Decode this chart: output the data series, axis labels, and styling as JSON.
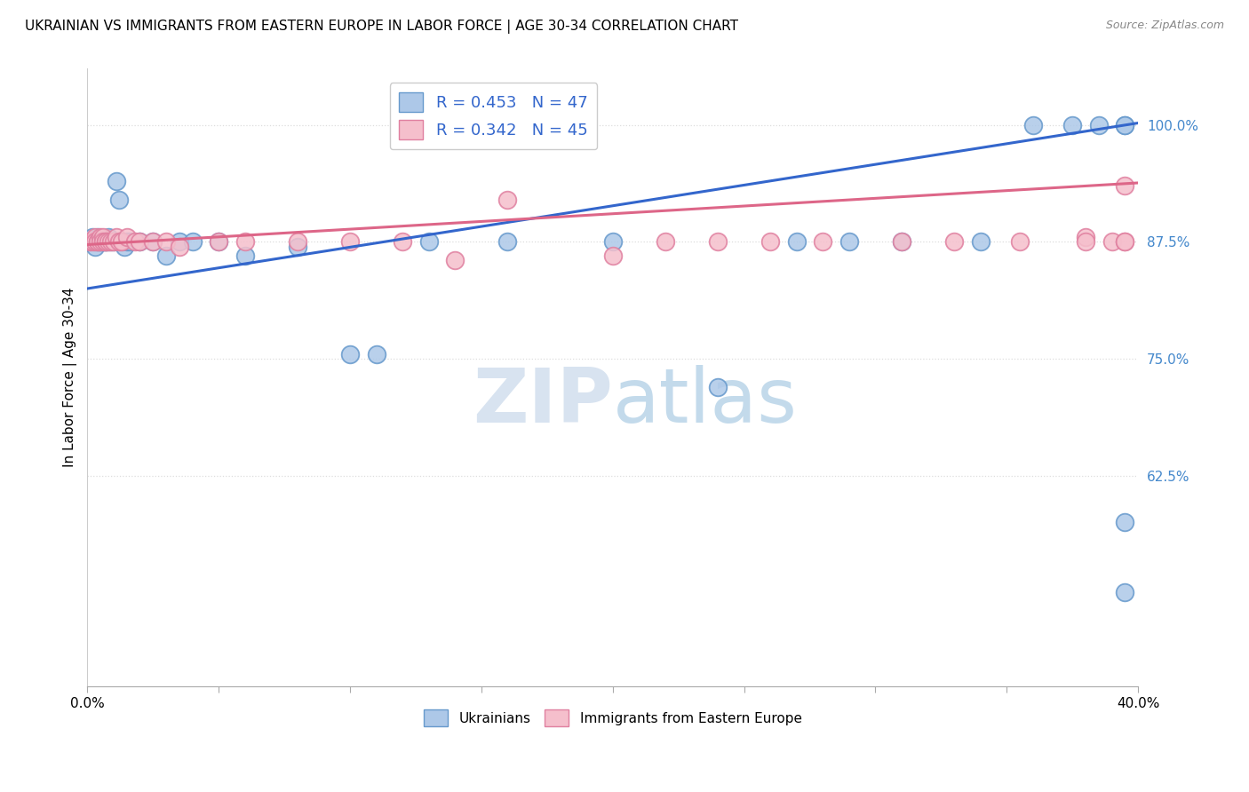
{
  "title": "UKRAINIAN VS IMMIGRANTS FROM EASTERN EUROPE IN LABOR FORCE | AGE 30-34 CORRELATION CHART",
  "source": "Source: ZipAtlas.com",
  "ylabel": "In Labor Force | Age 30-34",
  "xlim": [
    0.0,
    0.4
  ],
  "ylim": [
    0.4,
    1.06
  ],
  "blue_R": 0.453,
  "blue_N": 47,
  "pink_R": 0.342,
  "pink_N": 45,
  "blue_color": "#adc8e8",
  "blue_edge": "#6699cc",
  "pink_color": "#f5bfcc",
  "pink_edge": "#e080a0",
  "blue_line_color": "#3366cc",
  "pink_line_color": "#dd6688",
  "watermark_color": "#d0e0f5",
  "grid_color": "#dddddd",
  "ytick_color": "#4488cc",
  "y_ticks": [
    0.625,
    0.75,
    0.875,
    1.0
  ],
  "y_tick_labels": [
    "62.5%",
    "75.0%",
    "87.5%",
    "100.0%"
  ],
  "blue_x": [
    0.001,
    0.002,
    0.003,
    0.003,
    0.004,
    0.004,
    0.005,
    0.005,
    0.006,
    0.006,
    0.007,
    0.007,
    0.008,
    0.008,
    0.009,
    0.01,
    0.011,
    0.012,
    0.013,
    0.014,
    0.015,
    0.016,
    0.02,
    0.025,
    0.03,
    0.035,
    0.04,
    0.05,
    0.06,
    0.08,
    0.1,
    0.11,
    0.13,
    0.16,
    0.2,
    0.24,
    0.27,
    0.29,
    0.31,
    0.34,
    0.36,
    0.375,
    0.385,
    0.395,
    0.395,
    0.395,
    0.395
  ],
  "blue_y": [
    0.875,
    0.88,
    0.875,
    0.87,
    0.88,
    0.875,
    0.875,
    0.875,
    0.875,
    0.875,
    0.875,
    0.875,
    0.875,
    0.88,
    0.875,
    0.875,
    0.94,
    0.92,
    0.875,
    0.87,
    0.875,
    0.875,
    0.875,
    0.875,
    0.86,
    0.875,
    0.875,
    0.875,
    0.86,
    0.87,
    0.755,
    0.755,
    0.875,
    0.875,
    0.875,
    0.72,
    0.875,
    0.875,
    0.875,
    0.875,
    1.0,
    1.0,
    1.0,
    1.0,
    1.0,
    0.575,
    0.5
  ],
  "pink_x": [
    0.001,
    0.002,
    0.003,
    0.003,
    0.004,
    0.004,
    0.005,
    0.005,
    0.006,
    0.006,
    0.007,
    0.007,
    0.008,
    0.009,
    0.01,
    0.011,
    0.012,
    0.013,
    0.015,
    0.018,
    0.02,
    0.025,
    0.03,
    0.035,
    0.05,
    0.06,
    0.08,
    0.1,
    0.12,
    0.14,
    0.16,
    0.2,
    0.22,
    0.24,
    0.26,
    0.28,
    0.31,
    0.33,
    0.355,
    0.38,
    0.38,
    0.39,
    0.395,
    0.395,
    0.395
  ],
  "pink_y": [
    0.875,
    0.875,
    0.88,
    0.875,
    0.875,
    0.875,
    0.88,
    0.875,
    0.88,
    0.875,
    0.875,
    0.875,
    0.875,
    0.875,
    0.875,
    0.88,
    0.875,
    0.875,
    0.88,
    0.875,
    0.875,
    0.875,
    0.875,
    0.87,
    0.875,
    0.875,
    0.875,
    0.875,
    0.875,
    0.855,
    0.92,
    0.86,
    0.875,
    0.875,
    0.875,
    0.875,
    0.875,
    0.875,
    0.875,
    0.88,
    0.875,
    0.875,
    0.935,
    0.875,
    0.875
  ]
}
